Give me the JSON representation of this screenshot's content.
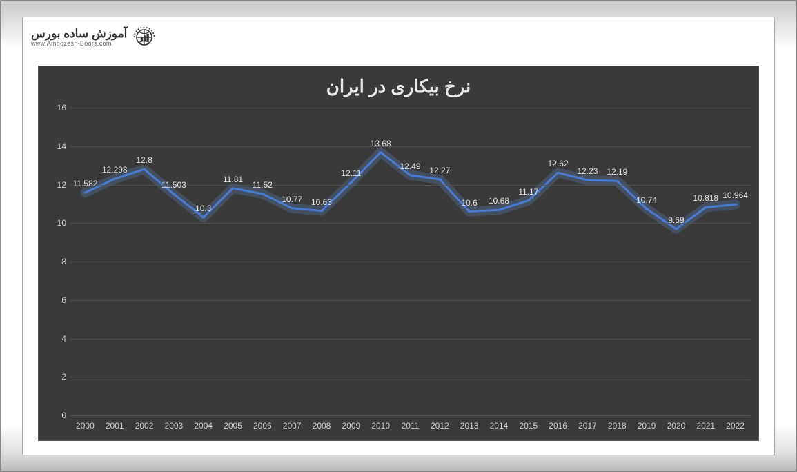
{
  "logo": {
    "fa_text": "آموزش ساده بورس",
    "en_text": "www.Amoozesh-Boors.com"
  },
  "chart": {
    "type": "line",
    "title": "نرخ بیکاری در ایران",
    "title_fontsize": 26,
    "title_color": "#e8e8e8",
    "background_color": "#3a3a3a",
    "grid_color": "#555555",
    "axis_label_color": "#cfcfcf",
    "axis_label_fontsize": 12,
    "data_label_color": "#e0e0e0",
    "data_label_fontsize": 12,
    "line_color": "#4a7bd0",
    "line_glow_color": "#6a9bf0",
    "line_width": 3,
    "marker_color": "#4a7bd0",
    "marker_radius": 3,
    "ylim": [
      0,
      16
    ],
    "ytick_step": 2,
    "yticks": [
      0,
      2,
      4,
      6,
      8,
      10,
      12,
      14,
      16
    ],
    "categories": [
      "2000",
      "2001",
      "2002",
      "2003",
      "2004",
      "2005",
      "2006",
      "2007",
      "2008",
      "2009",
      "2010",
      "2011",
      "2012",
      "2013",
      "2014",
      "2015",
      "2016",
      "2017",
      "2018",
      "2019",
      "2020",
      "2021",
      "2022"
    ],
    "values": [
      11.582,
      12.298,
      12.8,
      11.503,
      10.3,
      11.81,
      11.52,
      10.77,
      10.63,
      12.11,
      13.68,
      12.49,
      12.27,
      10.6,
      10.68,
      11.17,
      12.62,
      12.23,
      12.19,
      10.74,
      9.69,
      10.818,
      10.964
    ],
    "value_labels": [
      "11.582",
      "12.298",
      "12.8",
      "11.503",
      "10.3",
      "11.81",
      "11.52",
      "10.77",
      "10.63",
      "12.11",
      "13.68",
      "12.49",
      "12.27",
      "10.6",
      "10.68",
      "11.17",
      "12.62",
      "12.23",
      "12.19",
      "10.74",
      "9.69",
      "10.818",
      "10.964"
    ]
  }
}
